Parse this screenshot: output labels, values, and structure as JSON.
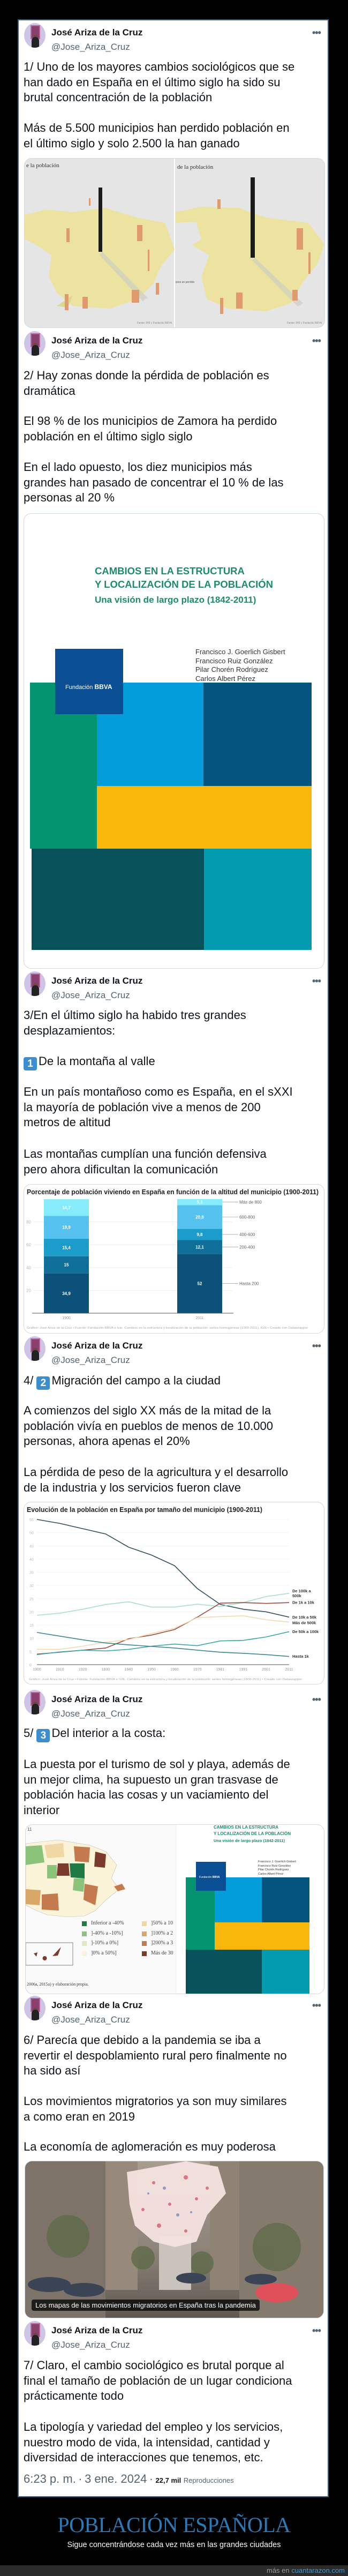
{
  "author": {
    "name": "José Ariza de la Cruz",
    "handle": "@Jose_Ariza_Cruz"
  },
  "more_icon": "•••",
  "tweets": [
    {
      "paragraphs": [
        "1/ Uno de los mayores cambios sociológicos que se\nhan dado en España en el último siglo ha sido su\nbrutal concentración de la población",
        "Más de 5.500 municipios han perdido población en\nel último siglo y solo 2.500 la han ganado"
      ]
    },
    {
      "paragraphs": [
        "2/ Hay zonas donde la pérdida de población es\ndramática",
        "El 98 % de los municipios de Zamora ha perdido\npoblación en el último siglo siglo",
        "En el lado opuesto, los diez municipios más\ngrandes han pasado de concentrar el 10 % de las\npersonas al 20 %"
      ]
    },
    {
      "paragraphs": [
        "3/En el último siglo ha habido tres grandes\ndesplazamientos:",
        {
          "keycap": "1",
          "text": "De la montaña al valle"
        },
        "En un país montañoso como es España, en el sXXI\nla mayoría de población vive a menos de 200\nmetros de altitud",
        "Las montañas cumplían una función defensiva\npero ahora dificultan la comunicación"
      ]
    },
    {
      "paragraphs": [
        {
          "prefix": "4/ ",
          "keycap": "2",
          "text": "Migración del campo a la ciudad"
        },
        "A comienzos del siglo XX más de la mitad de la\npoblación vivía en pueblos de menos de 10.000\npersonas, ahora apenas el 20%",
        "La pérdida de peso de la agricultura y el desarrollo\nde la industria y los servicios fueron clave"
      ]
    },
    {
      "paragraphs": [
        {
          "prefix": "5/ ",
          "keycap": "3",
          "text": "Del interior a la costa:"
        },
        "La puesta por el turismo de sol y playa, además de\nun mejor clima, ha supuesto un gran trasvase de\npoblación hacia las cosas y un vaciamiento del\ninterior"
      ]
    },
    {
      "paragraphs": [
        "6/ Parecía que debido a la pandemia se iba a\nrevertir el despoblamiento rural pero finalmente no\nha sido así",
        "Los movimientos migratorios ya son muy similares\na como eran en 2019",
        "La economía de aglomeración es muy poderosa"
      ]
    },
    {
      "paragraphs": [
        "7/ Claro, el cambio sociológico es brutal porque al\nfinal el tamaño de población de un lugar condiciona\nprácticamente todo",
        "La tipología y variedad del empleo y los servicios,\nnuestro modo de vida, la intensidad, cantidad y\ndiversidad de interacciones que tenemos, etc."
      ]
    }
  ],
  "maps3d": {
    "left_heading": "e la población",
    "right_heading": "de la población",
    "right_side_label": "ipios\nan perdido",
    "source": "Fuente: INE y Fundación BBVA"
  },
  "book_cover": {
    "title_line1": "CAMBIOS EN LA ESTRUCTURA",
    "title_line2": "Y LOCALIZACIÓN DE LA POBLACIÓN",
    "subtitle": "Una visión de largo plazo (1842-2011)",
    "authors": [
      "Francisco J. Goerlich Gisbert",
      "Francisco Ruiz González",
      "Pilar Chorén Rodríguez",
      "Carlos Albert Pérez"
    ],
    "publisher_prefix": "Fundación",
    "publisher_brand": "BBVA",
    "colors": {
      "green": "#04946f",
      "light_blue": "#049ddb",
      "dark_blue": "#04557e",
      "yellow": "#f8b70a",
      "dark_teal": "#07525a",
      "teal": "#029bb0",
      "logo": "#0a4f93",
      "title": "#1f8a6e"
    }
  },
  "choropleth": {
    "page_number": "11",
    "legend": [
      {
        "label": "Inferior a -40%",
        "color": "#1f7a45"
      },
      {
        "label": "]-40% a -10%]",
        "color": "#8cc37a"
      },
      {
        "label": "]-10% a 0%]",
        "color": "#dfe8bf"
      },
      {
        "label": "]0% a 50%]",
        "color": "#fbf3d8"
      },
      {
        "label": "]50% a 10",
        "color": "#f1d7a5"
      },
      {
        "label": "]100% a 2",
        "color": "#d9a766"
      },
      {
        "label": "]200% a 3",
        "color": "#c47a4d"
      },
      {
        "label": "Más de 30",
        "color": "#7a3b2c"
      }
    ],
    "source_note": "2006a, 2015a) y elaboración propia."
  },
  "photo": {
    "caption": "Los mapas de las movimientos migratorios en España tras la pandemia"
  },
  "footer_meta": {
    "time": "6:23 p. m.",
    "date": "3 ene. 2024",
    "views": "22,7 mil",
    "views_label": "Reproducciones",
    "sep": "·"
  },
  "meme": {
    "title": "POBLACIÓN ESPAÑOLA",
    "subtitle": "Sigue concentrándose cada vez más en las grandes ciudades",
    "more_prefix": "más en",
    "site": "cuantarazon.com",
    "title_color": "#2a7ab8"
  },
  "chart_data": [
    {
      "type": "bar",
      "stacked": true,
      "title": "Porcentaje de población viviendo en España en función de la altitud del municipio (1900-2011)",
      "categories": [
        "1900",
        "2011"
      ],
      "series": [
        {
          "name": "Hasta 200",
          "values": [
            34.9,
            52
          ],
          "color": "#0b5179"
        },
        {
          "name": "200-400",
          "values": [
            15,
            12.1
          ],
          "color": "#0f6f99"
        },
        {
          "name": "400-600",
          "values": [
            15.4,
            9.8
          ],
          "color": "#1c9ccb"
        },
        {
          "name": "600-800",
          "values": [
            19.9,
            20.8
          ],
          "color": "#56c2f0"
        },
        {
          "name": "Más de 800",
          "values": [
            14.7,
            5.3
          ],
          "color": "#86ecfb"
        }
      ],
      "data_labels": [
        [
          "34,9",
          "15",
          "15,4",
          "19,9",
          "14,7"
        ],
        [
          "52",
          "12,1",
          "9,8",
          "20,8",
          "5,3"
        ]
      ],
      "yticks": [
        20,
        40,
        60,
        80
      ],
      "ylim": [
        0,
        100
      ],
      "grid": true,
      "legend": "right (direct labels)",
      "source": "Gráfico: José Ariza de la Cruz • Fuente: Fundación BBVA e Ivie. Cambios en la estructura y localización de la población: series homogéneas (1900-2011). IGN • Creado con Datawrapper"
    },
    {
      "type": "line",
      "title": "Evolución de la población en España por tamaño del municipio (1900-2011)",
      "x": [
        "1900",
        "1910",
        "1920",
        "1930",
        "1940",
        "1950",
        "1960",
        "1970",
        "1981",
        "1991",
        "2001",
        "2011"
      ],
      "series": [
        {
          "name": "De 1k a 10k",
          "values": [
            55,
            53.5,
            51.5,
            49.5,
            44.5,
            41.5,
            37.5,
            28.8,
            22.8,
            21,
            20,
            18
          ],
          "color": "#2f4f5c"
        },
        {
          "name": "De 10k a 50k",
          "values": [
            18.7,
            19.5,
            21,
            22.8,
            23.8,
            21.8,
            21.8,
            22.9,
            22,
            23.5,
            25.8,
            27
          ],
          "color": "#a6ddd4"
        },
        {
          "name": "De 100k a 500k",
          "values": [
            4,
            4.7,
            5.5,
            6.3,
            9.8,
            11.2,
            13.3,
            18,
            23.3,
            23.5,
            23.2,
            23.5
          ],
          "color": "#9c4a3a"
        },
        {
          "name": "Más de 500k",
          "values": [
            5.8,
            5.8,
            7,
            8.5,
            9.5,
            11.8,
            13.8,
            17.8,
            18.2,
            18.5,
            17,
            16.1
          ],
          "color": "#f1d9b0"
        },
        {
          "name": "De 50k a 100k",
          "values": [
            3.8,
            4.8,
            5.5,
            5.2,
            5.8,
            7,
            7.8,
            7.2,
            9,
            9.2,
            10.5,
            12.5
          ],
          "color": "#3aa6a6"
        },
        {
          "name": "Hasta 1k",
          "values": [
            12.2,
            10.8,
            9.4,
            8.2,
            7.5,
            6.9,
            6.3,
            5.5,
            4.7,
            4.3,
            3.8,
            3.1
          ],
          "color": "#3b8790"
        }
      ],
      "series_labels": [
        "De 10k a 50k",
        "De 100k a\n500k",
        "De 1k a 10k",
        "Más de 500k",
        "De 50k a 100k",
        "Hasta 1k"
      ],
      "yticks": [
        0,
        5,
        10,
        15,
        20,
        25,
        30,
        35,
        40,
        45,
        50,
        55
      ],
      "ylim": [
        0,
        55
      ],
      "grid": true,
      "legend": "right (direct labels)",
      "source": "Gráfico: José Ariza de la Cruz • Fuente: Fundación BBVA e IVIE. Cambios en la estructura y localización de la población: series homogéneas (1900-2011) • Creado con Datawrapper"
    }
  ]
}
